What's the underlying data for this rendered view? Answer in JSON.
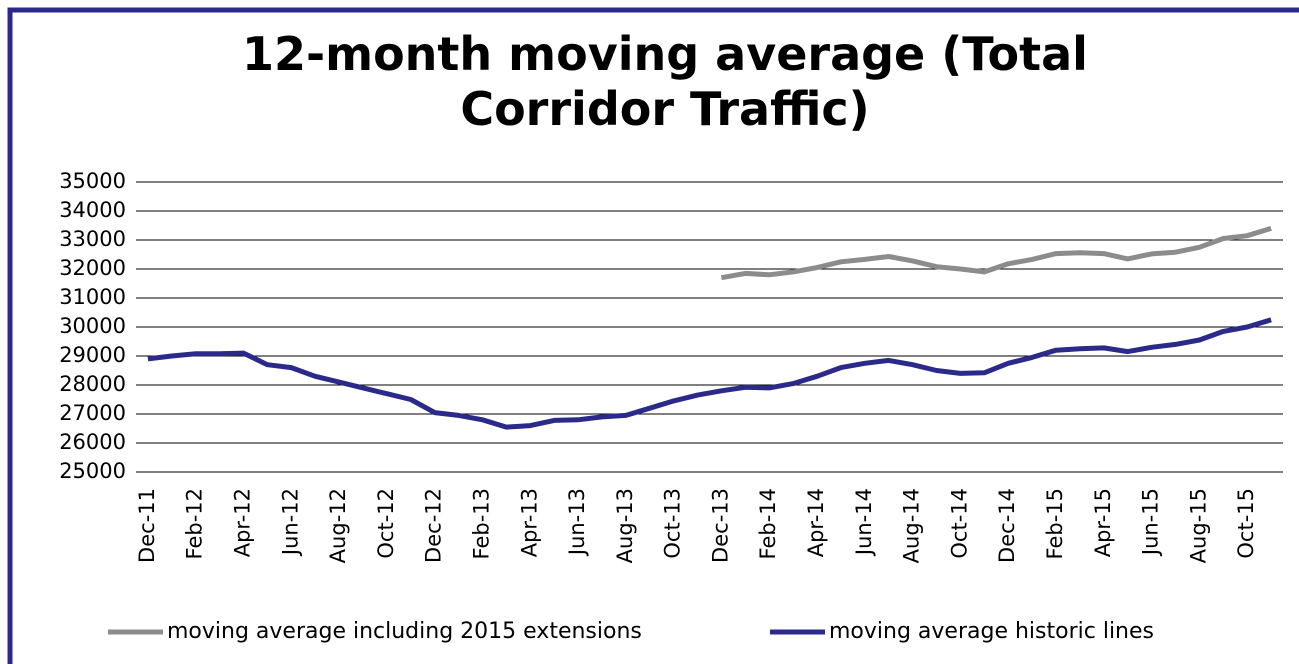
{
  "chart_data": {
    "type": "line",
    "title": [
      "12-month moving average (Total",
      "Corridor Traffic)"
    ],
    "categories": [
      "Dec-11",
      null,
      "Feb-12",
      null,
      "Apr-12",
      null,
      "Jun-12",
      null,
      "Aug-12",
      null,
      "Oct-12",
      null,
      "Dec-12",
      null,
      "Feb-13",
      null,
      "Apr-13",
      null,
      "Jun-13",
      null,
      "Aug-13",
      null,
      "Oct-13",
      null,
      "Dec-13",
      null,
      "Feb-14",
      null,
      "Apr-14",
      null,
      "Jun-14",
      null,
      "Aug-14",
      null,
      "Oct-14",
      null,
      "Dec-14",
      null,
      "Feb-15",
      null,
      "Apr-15",
      null,
      "Jun-15",
      null,
      "Aug-15",
      null,
      "Oct-15",
      null
    ],
    "series": [
      {
        "name": "moving average including 2015 extensions",
        "color": "#8c8c8c",
        "values": [
          null,
          null,
          null,
          null,
          null,
          null,
          null,
          null,
          null,
          null,
          null,
          null,
          null,
          null,
          null,
          null,
          null,
          null,
          null,
          null,
          null,
          null,
          null,
          null,
          31700,
          31850,
          31800,
          31900,
          32050,
          32250,
          32330,
          32430,
          32280,
          32080,
          32000,
          31900,
          32180,
          32330,
          32530,
          32560,
          32530,
          32350,
          32520,
          32580,
          32750,
          33050,
          33150,
          33400
        ]
      },
      {
        "name": "moving average historic lines",
        "color": "#2b2a8a",
        "values": [
          28900,
          29000,
          29080,
          29080,
          29100,
          28700,
          28600,
          28300,
          28100,
          27900,
          27700,
          27500,
          27050,
          26950,
          26800,
          26550,
          26600,
          26780,
          26800,
          26900,
          26950,
          27200,
          27450,
          27650,
          27800,
          27920,
          27900,
          28050,
          28300,
          28600,
          28750,
          28850,
          28700,
          28500,
          28400,
          28420,
          28750,
          28950,
          29200,
          29250,
          29280,
          29150,
          29300,
          29400,
          29550,
          29850,
          30000,
          30250
        ]
      }
    ],
    "ylim": [
      25000,
      35000
    ],
    "yticks": [
      25000,
      26000,
      27000,
      28000,
      29000,
      30000,
      31000,
      32000,
      33000,
      34000,
      35000
    ],
    "grid": true
  }
}
